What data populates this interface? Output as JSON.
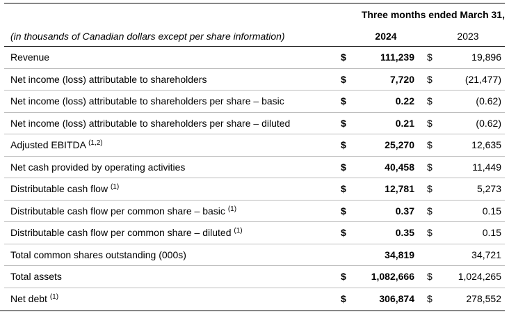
{
  "header": {
    "period_title": "Three months ended March 31,",
    "units_note": "(in thousands of Canadian dollars except per share information)",
    "year_current": "2024",
    "year_prior": "2023"
  },
  "rows": [
    {
      "label": "Revenue",
      "note": "",
      "cur_symbol": "$",
      "cur_value": "111,239",
      "prev_symbol": "$",
      "prev_value": "19,896"
    },
    {
      "label": "Net income (loss) attributable to shareholders",
      "note": "",
      "cur_symbol": "$",
      "cur_value": "7,720",
      "prev_symbol": "$",
      "prev_value": "(21,477)"
    },
    {
      "label": "Net income (loss) attributable to shareholders per share – basic",
      "note": "",
      "cur_symbol": "$",
      "cur_value": "0.22",
      "prev_symbol": "$",
      "prev_value": "(0.62)"
    },
    {
      "label": "Net income (loss) attributable to shareholders per share – diluted",
      "note": "",
      "cur_symbol": "$",
      "cur_value": "0.21",
      "prev_symbol": "$",
      "prev_value": "(0.62)"
    },
    {
      "label": "Adjusted EBITDA",
      "note": "(1,2)",
      "cur_symbol": "$",
      "cur_value": "25,270",
      "prev_symbol": "$",
      "prev_value": "12,635"
    },
    {
      "label": "Net cash provided by operating activities",
      "note": "",
      "cur_symbol": "$",
      "cur_value": "40,458",
      "prev_symbol": "$",
      "prev_value": "11,449"
    },
    {
      "label": "Distributable cash flow",
      "note": "(1)",
      "cur_symbol": "$",
      "cur_value": "12,781",
      "prev_symbol": "$",
      "prev_value": "5,273"
    },
    {
      "label": "Distributable cash flow per common share – basic",
      "note": "(1)",
      "cur_symbol": "$",
      "cur_value": "0.37",
      "prev_symbol": "$",
      "prev_value": "0.15"
    },
    {
      "label": "Distributable cash flow per common share – diluted",
      "note": "(1)",
      "cur_symbol": "$",
      "cur_value": "0.35",
      "prev_symbol": "$",
      "prev_value": "0.15"
    },
    {
      "label": "Total common shares outstanding (000s)",
      "note": "",
      "cur_symbol": "",
      "cur_value": "34,819",
      "prev_symbol": "",
      "prev_value": "34,721"
    },
    {
      "label": "Total assets",
      "note": "",
      "cur_symbol": "$",
      "cur_value": "1,082,666",
      "prev_symbol": "$",
      "prev_value": "1,024,265"
    },
    {
      "label": "Net debt",
      "note": "(1)",
      "cur_symbol": "$",
      "cur_value": "306,874",
      "prev_symbol": "$",
      "prev_value": "278,552"
    }
  ]
}
